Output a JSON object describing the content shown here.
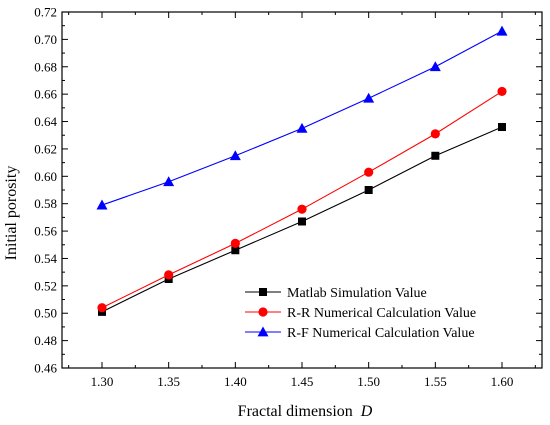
{
  "chart_data": {
    "type": "line",
    "title": "",
    "xlabel": "Fractal dimension",
    "xlabel_italic": "D",
    "ylabel": "Initial porosity",
    "x": [
      1.3,
      1.35,
      1.4,
      1.45,
      1.5,
      1.55,
      1.6
    ],
    "x_ticks": [
      "1.30",
      "1.35",
      "1.40",
      "1.45",
      "1.50",
      "1.55",
      "1.60"
    ],
    "xlim": [
      1.27,
      1.63
    ],
    "ylim": [
      0.46,
      0.72
    ],
    "y_ticks": [
      "0.46",
      "0.48",
      "0.50",
      "0.52",
      "0.54",
      "0.56",
      "0.58",
      "0.60",
      "0.62",
      "0.64",
      "0.66",
      "0.68",
      "0.70",
      "0.72"
    ],
    "grid": false,
    "legend_position": "bottom-right",
    "series": [
      {
        "name": "Matlab Simulation Value",
        "color": "#000000",
        "marker": "square",
        "values": [
          0.501,
          0.525,
          0.546,
          0.567,
          0.59,
          0.615,
          0.636
        ]
      },
      {
        "name": "R-R Numerical Calculation Value",
        "color": "#ff0000",
        "marker": "circle",
        "values": [
          0.504,
          0.528,
          0.551,
          0.576,
          0.603,
          0.631,
          0.662
        ]
      },
      {
        "name": "R-F Numerical Calculation Value",
        "color": "#0000ff",
        "marker": "triangle",
        "values": [
          0.579,
          0.596,
          0.615,
          0.635,
          0.657,
          0.68,
          0.706
        ]
      }
    ]
  }
}
